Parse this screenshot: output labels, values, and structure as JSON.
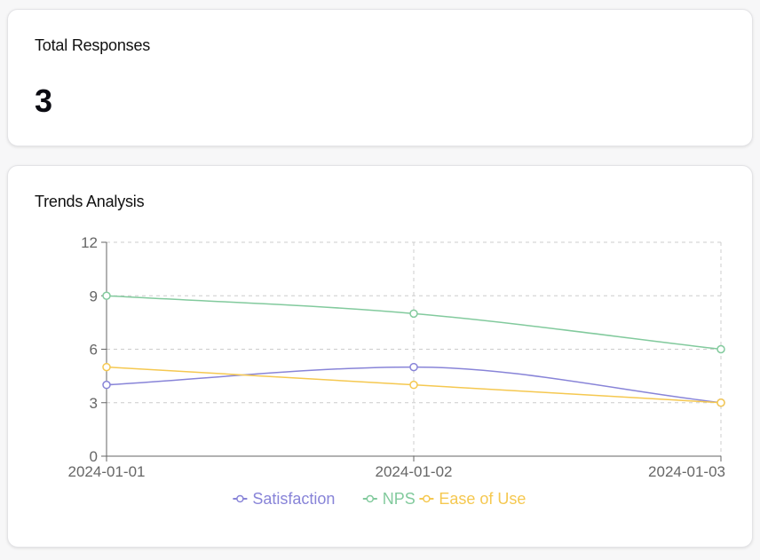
{
  "total_card": {
    "title": "Total Responses",
    "value": "3"
  },
  "trends_card": {
    "title": "Trends Analysis"
  },
  "chart_data": {
    "type": "line",
    "title": "",
    "xlabel": "",
    "ylabel": "",
    "x": [
      "2024-01-01",
      "2024-01-02",
      "2024-01-03"
    ],
    "ylim": [
      0,
      12
    ],
    "yticks": [
      0,
      3,
      6,
      9,
      12
    ],
    "grid": true,
    "legend_position": "bottom",
    "series": [
      {
        "name": "Satisfaction",
        "values": [
          4,
          5,
          3
        ],
        "color": "#8884d8"
      },
      {
        "name": "NPS",
        "values": [
          9,
          8,
          6
        ],
        "color": "#82ca9d"
      },
      {
        "name": "Ease of Use",
        "values": [
          5,
          4,
          3
        ],
        "color": "#f5c850"
      }
    ]
  }
}
